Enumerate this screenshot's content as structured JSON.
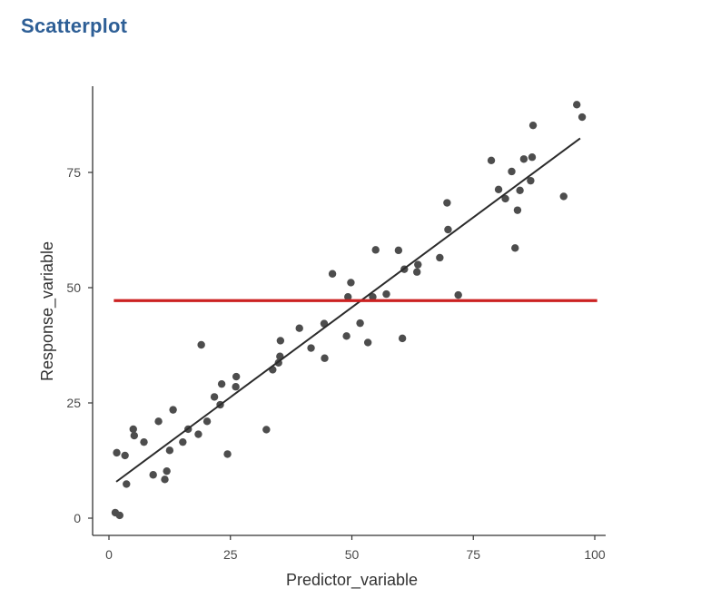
{
  "page": {
    "title": "Scatterplot"
  },
  "colors": {
    "title": "#2e5f96",
    "points": "#4d4d4d",
    "fit_line": "#2b2b2b",
    "mean_line": "#cc2222",
    "axis": "#333333"
  },
  "chart_data": {
    "type": "scatter",
    "title": "",
    "xlabel": "Predictor_variable",
    "ylabel": "Response_variable",
    "xlim": [
      0,
      100
    ],
    "ylim": [
      0,
      90
    ],
    "xticks": [
      0,
      25,
      50,
      75,
      100
    ],
    "yticks": [
      0,
      25,
      50,
      75
    ],
    "grid": false,
    "x": [
      1.3,
      2.2,
      1.6,
      3.3,
      3.6,
      5.0,
      5.2,
      7.2,
      9.1,
      10.2,
      11.5,
      11.9,
      12.5,
      13.2,
      15.2,
      16.3,
      18.4,
      19.0,
      20.2,
      21.7,
      22.9,
      23.2,
      24.4,
      26.1,
      26.2,
      32.4,
      33.7,
      34.9,
      35.2,
      35.3,
      39.2,
      41.6,
      44.3,
      44.4,
      46.0,
      48.9,
      49.2,
      49.8,
      51.7,
      53.3,
      54.3,
      54.9,
      57.1,
      59.6,
      60.4,
      60.8,
      63.4,
      63.6,
      68.1,
      69.6,
      69.8,
      71.9,
      78.7,
      80.2,
      81.6,
      82.9,
      83.6,
      84.1,
      84.6,
      85.4,
      86.8,
      87.1,
      87.3,
      93.6,
      96.3,
      97.4
    ],
    "y": [
      1.2,
      0.6,
      14.2,
      13.6,
      7.4,
      19.3,
      17.9,
      16.5,
      9.4,
      21.0,
      8.4,
      10.2,
      14.7,
      23.5,
      16.5,
      19.3,
      18.2,
      37.6,
      21.0,
      26.3,
      24.6,
      29.1,
      13.9,
      28.5,
      30.7,
      19.2,
      32.2,
      33.7,
      35.1,
      38.5,
      41.2,
      36.9,
      42.2,
      34.7,
      53.0,
      39.5,
      48.0,
      51.1,
      42.3,
      38.1,
      48.0,
      58.2,
      48.6,
      58.1,
      39.0,
      54.0,
      53.4,
      55.0,
      56.5,
      68.4,
      62.6,
      48.4,
      77.6,
      71.3,
      69.3,
      75.2,
      58.6,
      66.8,
      71.1,
      77.9,
      73.2,
      78.3,
      85.2,
      69.8,
      89.7,
      87.0
    ],
    "trend_line": {
      "x": [
        1.5,
        97.0
      ],
      "y": [
        7.9,
        82.4
      ]
    },
    "reference_line": {
      "y": 47.2,
      "x_range": [
        1.0,
        100.5
      ]
    }
  }
}
